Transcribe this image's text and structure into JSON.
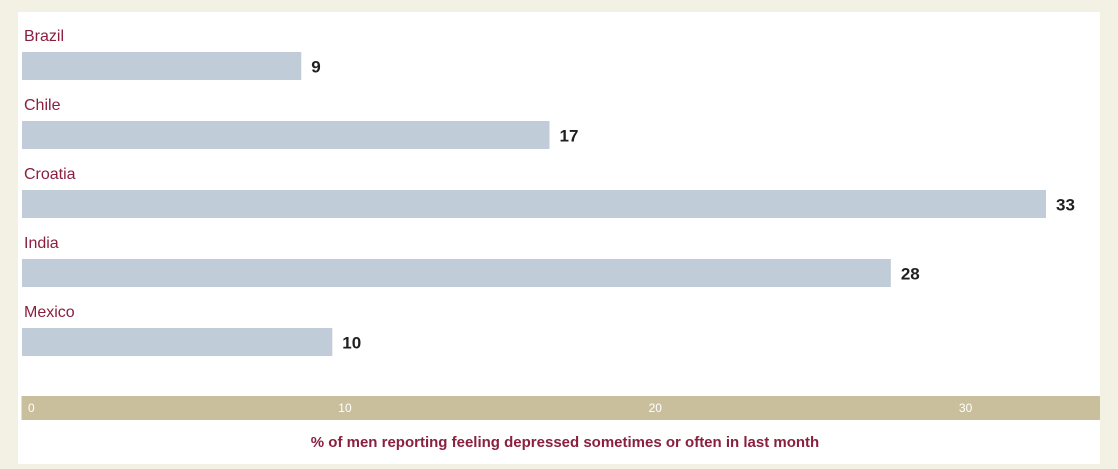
{
  "chart_data": {
    "type": "bar",
    "orientation": "horizontal",
    "categories": [
      "Brazil",
      "Chile",
      "Croatia",
      "India",
      "Mexico"
    ],
    "values": [
      9,
      17,
      33,
      28,
      10
    ],
    "color": "#c0cdd8",
    "xlim": [
      0,
      35
    ],
    "xticks": [
      0,
      10,
      20,
      30
    ],
    "xlabel": "% of men reporting feeling depressed sometimes or often in last month"
  }
}
